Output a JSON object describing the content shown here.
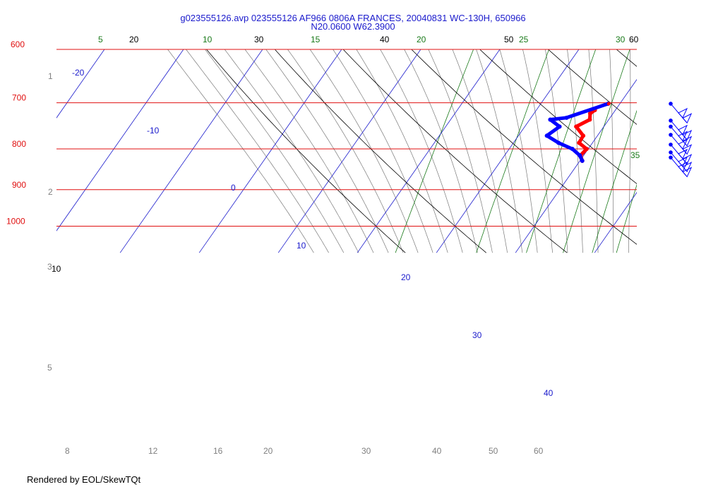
{
  "window": {
    "title_line1": "g023555126.avp 023555126 AF966 0806A FRANCES, 20040831 WC-130H, 650966",
    "title_line2": "N20.0600 W62.3900",
    "footer": "Rendered by EOL/SkewTQt"
  },
  "colors": {
    "isobar": "#e01010",
    "isotherm": "#1a1acc",
    "dry_adiabat": "#000000",
    "moist_adiabat": "#7a7a7a",
    "mixing_ratio": "#1a7a1a",
    "temperature": "#ff0000",
    "dewpoint": "#0000ff",
    "wind_barb": "#0000ff",
    "height_label": "#808080"
  },
  "chart_data": {
    "type": "skew-t",
    "title": "g023555126.avp 023555126 AF966 0806A FRANCES, 20040831 WC-130H, 650966",
    "subtitle": "N20.0600 W62.3900",
    "y_axis": {
      "quantity": "pressure",
      "unit": "hPa",
      "scale": "log",
      "range": [
        1050,
        600
      ]
    },
    "isobars": [
      {
        "value": 600,
        "label": "600"
      },
      {
        "value": 700,
        "label": "700"
      },
      {
        "value": 800,
        "label": "800"
      },
      {
        "value": 900,
        "label": "900"
      },
      {
        "value": 1000,
        "label": "1000"
      }
    ],
    "isotherm_labels": [
      "-20",
      "-10",
      "0",
      "10",
      "20",
      "30",
      "40"
    ],
    "dry_adiabat_labels": [
      "10",
      "20",
      "30",
      "40",
      "50",
      "60"
    ],
    "mixing_ratio_labels": [
      "5",
      "10",
      "15",
      "20",
      "25",
      "30",
      "35"
    ],
    "height_labels": [
      "1",
      "2",
      "3",
      "5"
    ],
    "bottom_labels": [
      "8",
      "12",
      "16",
      "20",
      "30",
      "40",
      "50",
      "60"
    ],
    "temperature_series": {
      "name": "",
      "points": [
        [
          828,
          20.3
        ],
        [
          815,
          19.6
        ],
        [
          800,
          19.8
        ],
        [
          786,
          18.3
        ],
        [
          770,
          18.2
        ],
        [
          750,
          16.5
        ],
        [
          735,
          17.6
        ],
        [
          722,
          17.1
        ],
        [
          715,
          17.4
        ]
      ]
    },
    "dewpoint_series": {
      "name": "",
      "points": [
        [
          828,
          20.3
        ],
        [
          815,
          19.5
        ],
        [
          800,
          18.0
        ],
        [
          786,
          15.7
        ],
        [
          770,
          13.6
        ],
        [
          750,
          14.4
        ],
        [
          735,
          12.6
        ],
        [
          731,
          14.5
        ],
        [
          702,
          18.5
        ]
      ]
    },
    "wind_barbs": [
      {
        "pressure": 702,
        "speed_kt": 25
      },
      {
        "pressure": 737,
        "speed_kt": 25
      },
      {
        "pressure": 750,
        "speed_kt": 25
      },
      {
        "pressure": 768,
        "speed_kt": 25
      },
      {
        "pressure": 790,
        "speed_kt": 25
      },
      {
        "pressure": 808,
        "speed_kt": 25
      },
      {
        "pressure": 820,
        "speed_kt": 25
      }
    ]
  }
}
